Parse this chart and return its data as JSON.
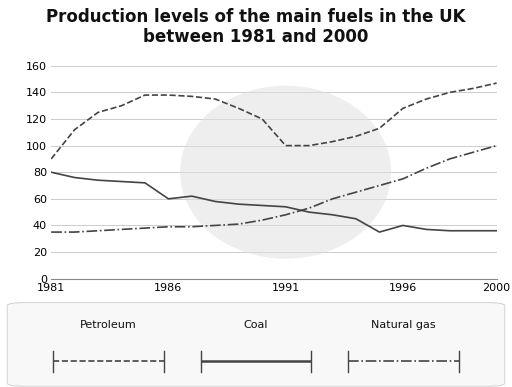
{
  "title": "Production levels of the main fuels in the UK\nbetween 1981 and 2000",
  "years": [
    1981,
    1982,
    1983,
    1984,
    1985,
    1986,
    1987,
    1988,
    1989,
    1990,
    1991,
    1992,
    1993,
    1994,
    1995,
    1996,
    1997,
    1998,
    1999,
    2000
  ],
  "petroleum": [
    80,
    76,
    74,
    73,
    72,
    60,
    62,
    58,
    56,
    55,
    54,
    50,
    48,
    45,
    35,
    40,
    37,
    36,
    36,
    36
  ],
  "coal": [
    90,
    112,
    125,
    130,
    138,
    138,
    137,
    135,
    128,
    120,
    100,
    100,
    103,
    107,
    113,
    128,
    135,
    140,
    143,
    147
  ],
  "natural_gas": [
    35,
    35,
    36,
    37,
    38,
    39,
    39,
    40,
    41,
    44,
    48,
    53,
    60,
    65,
    70,
    75,
    83,
    90,
    95,
    100
  ],
  "ylim": [
    0,
    160
  ],
  "yticks": [
    0,
    20,
    40,
    60,
    80,
    100,
    120,
    140,
    160
  ],
  "xticks": [
    1981,
    1986,
    1991,
    1996,
    2000
  ],
  "bg_color": "#ffffff",
  "grid_color": "#cccccc",
  "line_color": "#444444",
  "title_fontsize": 12,
  "legend_labels": [
    "Petroleum",
    "Coal",
    "Natural gas"
  ]
}
